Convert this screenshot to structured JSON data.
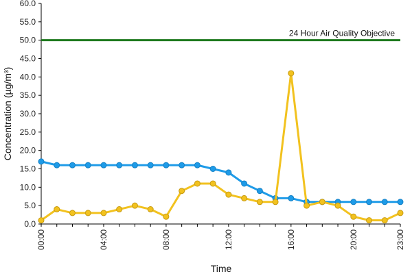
{
  "chart_data": {
    "type": "line",
    "xlabel": "Time",
    "ylabel": "Concentration (µg/m³)",
    "ylim": [
      0,
      60
    ],
    "y_ticks": [
      "0.0",
      "5.0",
      "10.0",
      "15.0",
      "20.0",
      "25.0",
      "30.0",
      "35.0",
      "40.0",
      "45.0",
      "50.0",
      "55.0",
      "60.0"
    ],
    "x": [
      "00:00",
      "01:00",
      "02:00",
      "03:00",
      "04:00",
      "05:00",
      "06:00",
      "07:00",
      "08:00",
      "09:00",
      "10:00",
      "11:00",
      "12:00",
      "13:00",
      "14:00",
      "15:00",
      "16:00",
      "17:00",
      "18:00",
      "19:00",
      "20:00",
      "21:00",
      "22:00",
      "23:00"
    ],
    "x_tick_labels": [
      "00:00",
      "04:00",
      "08:00",
      "12:00",
      "16:00",
      "20:00",
      "23:00"
    ],
    "grid": false,
    "legend": "none",
    "series": [
      {
        "color": "#1e9be8",
        "values": [
          17,
          16,
          16,
          16,
          16,
          16,
          16,
          16,
          16,
          16,
          16,
          15,
          14,
          11,
          9,
          7,
          7,
          6,
          6,
          6,
          6,
          6,
          6,
          6
        ]
      },
      {
        "color": "#f2c21f",
        "values": [
          1,
          4,
          3,
          3,
          3,
          4,
          5,
          4,
          2,
          9,
          11,
          11,
          8,
          7,
          6,
          6,
          41,
          5,
          6,
          5,
          2,
          1,
          1,
          3
        ]
      }
    ],
    "reference_line": {
      "value": 50,
      "label": "24 Hour Air Quality Objective",
      "color": "#1f7a1f"
    }
  }
}
